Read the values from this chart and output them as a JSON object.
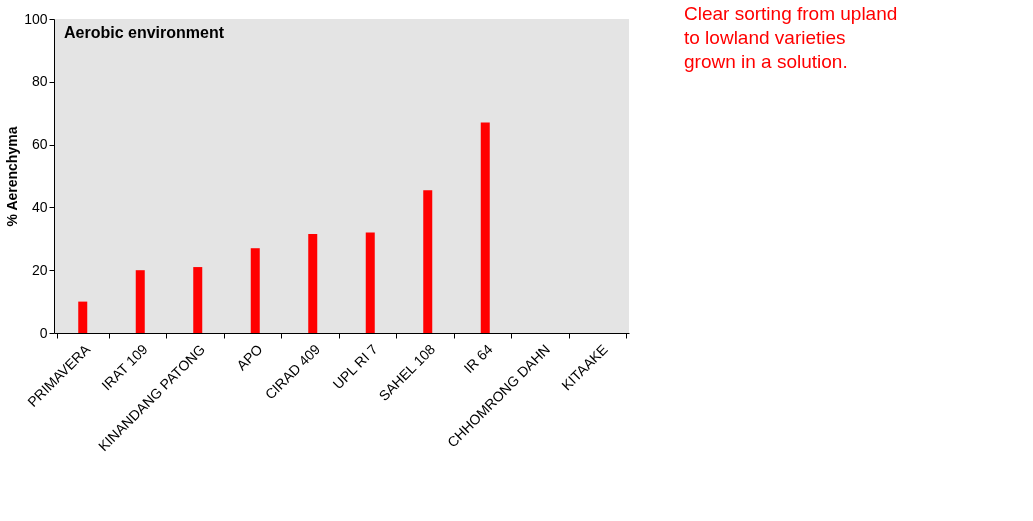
{
  "chart_data": {
    "type": "bar",
    "title": "Aerobic environment",
    "ylabel": "% Aerenchyma",
    "categories": [
      "PRIMAVERA",
      "IRAT 109",
      "KINANDANG PATONG",
      "APO",
      "CIRAD 409",
      "UPL RI 7",
      "SAHEL 108",
      "IR 64",
      "CHHOMRONG DAHN",
      "KITAAKE"
    ],
    "values": [
      10,
      20,
      21,
      27,
      31.5,
      32,
      45.5,
      67,
      null,
      null
    ],
    "color": "#ff0000",
    "ylim": [
      0,
      100
    ],
    "yticks": [
      0,
      20,
      40,
      60,
      80,
      100
    ],
    "grid": false,
    "annotations": [
      "Clear sorting from upland\nto lowland varieties\ngrown in a solution."
    ]
  }
}
